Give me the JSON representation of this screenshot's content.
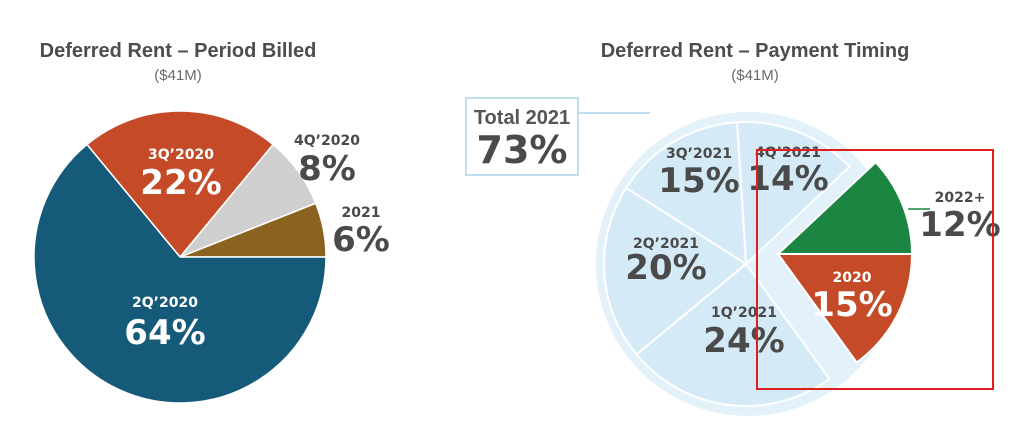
{
  "charts_meta": {
    "highlight_color": "#e01e1e"
  },
  "chart_data": [
    {
      "type": "pie",
      "title": "Deferred Rent – Period Billed",
      "subtitle": "($41M)",
      "slices": [
        {
          "label": "2Q’2020",
          "value": 64,
          "display": "64%",
          "color": "#155a78"
        },
        {
          "label": "3Q’2020",
          "value": 22,
          "display": "22%",
          "color": "#c44a28"
        },
        {
          "label": "4Q’2020",
          "value": 8,
          "display": "8%",
          "color": "#cfcfcf"
        },
        {
          "label": "2021",
          "value": 6,
          "display": "6%",
          "color": "#8b6321"
        }
      ]
    },
    {
      "type": "pie",
      "title": "Deferred Rent – Payment Timing",
      "subtitle": "($41M)",
      "slices": [
        {
          "label": "2022+",
          "value": 12,
          "display": "12%",
          "color": "#1b8542"
        },
        {
          "label": "2020",
          "value": 15,
          "display": "15%",
          "color": "#c44a28"
        },
        {
          "label": "1Q’2021",
          "value": 24,
          "display": "24%",
          "color": "#d4eaf7"
        },
        {
          "label": "2Q’2021",
          "value": 20,
          "display": "20%",
          "color": "#d4eaf7"
        },
        {
          "label": "3Q’2021",
          "value": 15,
          "display": "15%",
          "color": "#d4eaf7"
        },
        {
          "label": "4Q’2021",
          "value": 14,
          "display": "14%",
          "color": "#d4eaf7"
        }
      ],
      "callout": {
        "label": "Total 2021",
        "display": "73%"
      }
    }
  ]
}
